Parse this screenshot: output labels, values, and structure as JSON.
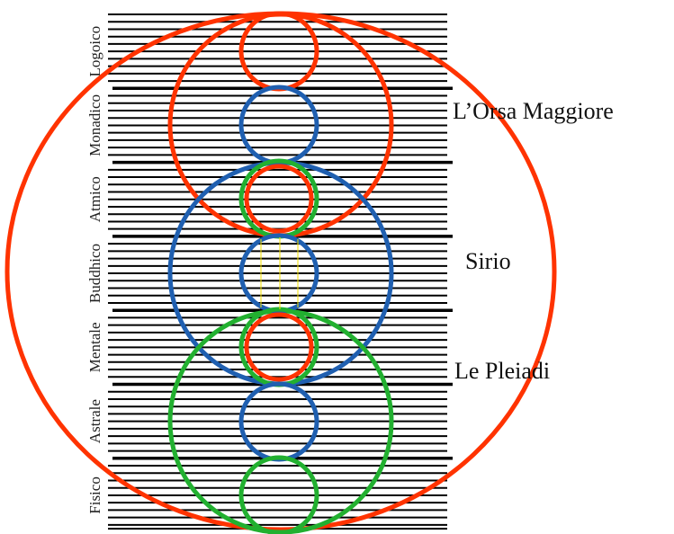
{
  "planes": [
    "Logoico",
    "Monadico",
    "Atmico",
    "Buddhico",
    "Mentale",
    "Astrale",
    "Fisico"
  ],
  "stars": [
    "L’Orsa Maggiore",
    "Sirio",
    "Le Pleiadi"
  ]
}
